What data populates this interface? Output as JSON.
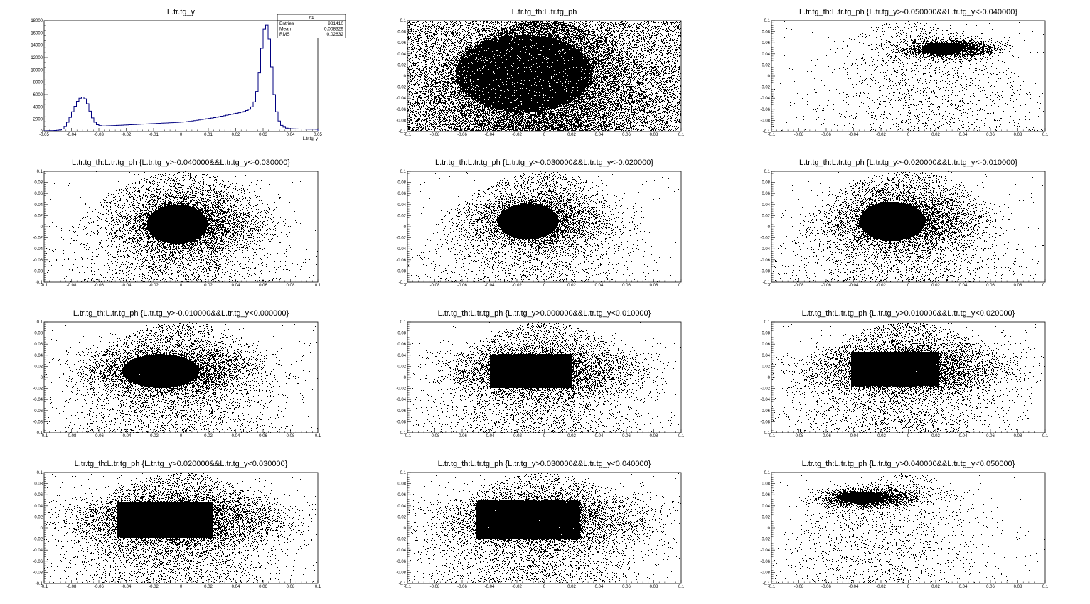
{
  "chart_data": [
    {
      "type": "histogram",
      "title": "L.tr.tg_y",
      "xlabel": "L.tr.tg_y",
      "ylabel": "",
      "xlim": [
        -0.05,
        0.05
      ],
      "ylim": [
        0,
        18000
      ],
      "x_ticks": [
        "-0.05",
        "-0.04",
        "-0.03",
        "-0.02",
        "-0.01",
        "0",
        "0.01",
        "0.02",
        "0.03",
        "0.04",
        "0.05"
      ],
      "y_ticks": [
        "0",
        "2000",
        "4000",
        "6000",
        "8000",
        "10000",
        "12000",
        "14000",
        "16000",
        "18000"
      ],
      "bin_range": [
        -0.05,
        0.05
      ],
      "counts": [
        120,
        130,
        140,
        150,
        170,
        200,
        260,
        400,
        800,
        1500,
        2300,
        3200,
        4100,
        4900,
        5400,
        5600,
        5300,
        4500,
        3300,
        2200,
        1500,
        1100,
        950,
        900,
        900,
        920,
        940,
        950,
        970,
        990,
        1010,
        1030,
        1050,
        1070,
        1090,
        1110,
        1130,
        1150,
        1170,
        1190,
        1210,
        1230,
        1250,
        1270,
        1290,
        1310,
        1330,
        1350,
        1370,
        1390,
        1410,
        1430,
        1450,
        1470,
        1500,
        1530,
        1560,
        1600,
        1650,
        1700,
        1760,
        1820,
        1880,
        1940,
        2000,
        2060,
        2120,
        2180,
        2250,
        2320,
        2400,
        2480,
        2560,
        2640,
        2720,
        2800,
        2880,
        2960,
        3050,
        3150,
        3250,
        3400,
        3600,
        4000,
        4800,
        6500,
        9500,
        13500,
        16600,
        17300,
        15000,
        10500,
        6000,
        3200,
        1700,
        1000,
        700,
        550,
        480,
        450,
        430,
        420,
        410,
        400,
        400,
        390,
        380,
        370,
        370,
        360
      ],
      "stats": {
        "name": "h1",
        "rows": [
          {
            "label": "Entries",
            "value": "981410"
          },
          {
            "label": "Mean",
            "value": "0.008329"
          },
          {
            "label": "RMS",
            "value": "0.02632"
          }
        ]
      },
      "line_color": "#000080"
    },
    {
      "type": "scatter",
      "title": "L.tr.tg_th:L.tr.tg_ph",
      "xlim": [
        -0.1,
        0.1
      ],
      "ylim": [
        -0.1,
        0.1
      ],
      "density": {
        "uniform": 0.35,
        "shape": "ellipse",
        "cx": -0.015,
        "cy": 0.005,
        "rx": 0.05,
        "ry": 0.07,
        "core": 0.8,
        "edge": 0.4,
        "background": 1.0
      }
    },
    {
      "type": "scatter",
      "title": "L.tr.tg_th:L.tr.tg_ph {L.tr.tg_y>-0.050000&&L.tr.tg_y<-0.040000}",
      "xlim": [
        -0.1,
        0.1
      ],
      "ylim": [
        -0.1,
        0.1
      ],
      "density": {
        "uniform": 0.006,
        "shape": "ellipse",
        "cx": 0.025,
        "cy": 0.05,
        "rx": 0.015,
        "ry": 0.01,
        "core": 0.35,
        "edge": 0.2,
        "background": 0.12
      }
    },
    {
      "type": "scatter",
      "title": "L.tr.tg_th:L.tr.tg_ph {L.tr.tg_y>-0.040000&&L.tr.tg_y<-0.030000}",
      "xlim": [
        -0.1,
        0.1
      ],
      "ylim": [
        -0.1,
        0.1
      ],
      "density": {
        "uniform": 0.006,
        "shape": "ellipse",
        "cx": -0.003,
        "cy": 0.005,
        "rx": 0.022,
        "ry": 0.035,
        "core": 1.0,
        "edge": 0.35,
        "background": 0.22
      }
    },
    {
      "type": "scatter",
      "title": "L.tr.tg_th:L.tr.tg_ph {L.tr.tg_y>-0.030000&&L.tr.tg_y<-0.020000}",
      "xlim": [
        -0.1,
        0.1
      ],
      "ylim": [
        -0.1,
        0.1
      ],
      "density": {
        "uniform": 0.006,
        "shape": "ellipse",
        "cx": -0.012,
        "cy": 0.01,
        "rx": 0.022,
        "ry": 0.032,
        "core": 0.6,
        "edge": 0.3,
        "background": 0.18
      }
    },
    {
      "type": "scatter",
      "title": "L.tr.tg_th:L.tr.tg_ph {L.tr.tg_y>-0.020000&&L.tr.tg_y<-0.010000}",
      "xlim": [
        -0.1,
        0.1
      ],
      "ylim": [
        -0.1,
        0.1
      ],
      "density": {
        "uniform": 0.006,
        "shape": "ellipse",
        "cx": -0.012,
        "cy": 0.01,
        "rx": 0.024,
        "ry": 0.035,
        "core": 0.9,
        "edge": 0.35,
        "background": 0.2
      }
    },
    {
      "type": "scatter",
      "title": "L.tr.tg_th:L.tr.tg_ph {L.tr.tg_y>-0.010000&&L.tr.tg_y<0.000000}",
      "xlim": [
        -0.1,
        0.1
      ],
      "ylim": [
        -0.1,
        0.1
      ],
      "density": {
        "uniform": 0.006,
        "shape": "ellipse",
        "cx": -0.015,
        "cy": 0.012,
        "rx": 0.028,
        "ry": 0.03,
        "core": 0.9,
        "edge": 0.35,
        "background": 0.22
      }
    },
    {
      "type": "scatter",
      "title": "L.tr.tg_th:L.tr.tg_ph {L.tr.tg_y>0.000000&&L.tr.tg_y<0.010000}",
      "xlim": [
        -0.1,
        0.1
      ],
      "ylim": [
        -0.1,
        0.1
      ],
      "density": {
        "uniform": 0.006,
        "shape": "rect",
        "cx": -0.01,
        "cy": 0.012,
        "rx": 0.03,
        "ry": 0.03,
        "core": 1.0,
        "edge": 0.35,
        "background": 0.22
      }
    },
    {
      "type": "scatter",
      "title": "L.tr.tg_th:L.tr.tg_ph {L.tr.tg_y>0.010000&&L.tr.tg_y<0.020000}",
      "xlim": [
        -0.1,
        0.1
      ],
      "ylim": [
        -0.1,
        0.1
      ],
      "density": {
        "uniform": 0.006,
        "shape": "rect",
        "cx": -0.01,
        "cy": 0.015,
        "rx": 0.032,
        "ry": 0.03,
        "core": 1.0,
        "edge": 0.4,
        "background": 0.24
      }
    },
    {
      "type": "scatter",
      "title": "L.tr.tg_th:L.tr.tg_ph {L.tr.tg_y>0.020000&&L.tr.tg_y<0.030000}",
      "xlim": [
        -0.1,
        0.1
      ],
      "ylim": [
        -0.1,
        0.1
      ],
      "density": {
        "uniform": 0.006,
        "shape": "rect",
        "cx": -0.012,
        "cy": 0.015,
        "rx": 0.035,
        "ry": 0.032,
        "core": 1.0,
        "edge": 0.45,
        "background": 0.26
      }
    },
    {
      "type": "scatter",
      "title": "L.tr.tg_th:L.tr.tg_ph {L.tr.tg_y>0.030000&&L.tr.tg_y<0.040000}",
      "xlim": [
        -0.1,
        0.1
      ],
      "ylim": [
        -0.1,
        0.1
      ],
      "density": {
        "uniform": 0.006,
        "shape": "rect",
        "cx": -0.012,
        "cy": 0.015,
        "rx": 0.038,
        "ry": 0.035,
        "core": 1.0,
        "edge": 0.3,
        "background": 0.24
      }
    },
    {
      "type": "scatter",
      "title": "L.tr.tg_th:L.tr.tg_ph {L.tr.tg_y>0.040000&&L.tr.tg_y<0.050000}",
      "xlim": [
        -0.1,
        0.1
      ],
      "ylim": [
        -0.1,
        0.1
      ],
      "density": {
        "uniform": 0.006,
        "shape": "ellipse",
        "cx": -0.035,
        "cy": 0.055,
        "rx": 0.015,
        "ry": 0.01,
        "core": 0.3,
        "edge": 0.2,
        "background": 0.12
      }
    }
  ],
  "scatter_ticks": {
    "x": [
      "-0.1",
      "-0.08",
      "-0.06",
      "-0.04",
      "-0.02",
      "0",
      "0.02",
      "0.04",
      "0.06",
      "0.08",
      "0.1"
    ],
    "y": [
      "-0.1",
      "-0.08",
      "-0.06",
      "-0.04",
      "-0.02",
      "0",
      "0.02",
      "0.04",
      "0.06",
      "0.08",
      "0.1"
    ]
  }
}
